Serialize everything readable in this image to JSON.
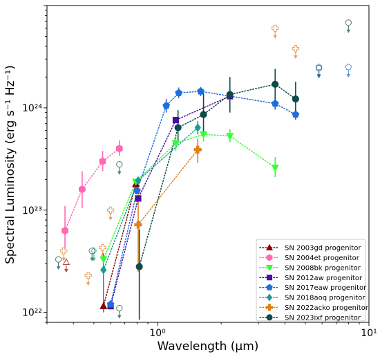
{
  "chart_data": {
    "type": "scatter",
    "title": "",
    "xlabel": "Wavelength (μm)",
    "ylabel": "Spectral Luminosity (erg s⁻¹ Hz⁻¹)",
    "xscale": "log",
    "yscale": "log",
    "xlim": [
      0.3,
      10
    ],
    "ylim": [
      8e+21,
      1e+25
    ],
    "x_ticks": [
      {
        "value": 1,
        "label": "10⁰"
      },
      {
        "value": 10,
        "label": "10¹"
      }
    ],
    "y_ticks": [
      {
        "value": 1e+22,
        "label": "10²²"
      },
      {
        "value": 1e+23,
        "label": "10²³"
      },
      {
        "value": 1e+24,
        "label": "10²⁴"
      }
    ],
    "legend_position": "lower-right",
    "series": [
      {
        "name": "SN 2003gd progenitor",
        "color": "#8b0000",
        "marker": "triangle-up",
        "points": [
          {
            "x": 0.555,
            "y": 1.15e+22,
            "err": [
              1.04e+22,
              1.28e+22
            ]
          },
          {
            "x": 0.79,
            "y": 1.8e+23
          }
        ],
        "upper_limits": [
          {
            "x": 0.37,
            "y": 3.1e+22
          }
        ]
      },
      {
        "name": "SN 2004et progenitor",
        "color": "#ff69b4",
        "marker": "hexagon",
        "points": [
          {
            "x": 0.365,
            "y": 6.3e+22,
            "err": [
              4.2e+22,
              1.1e+23
            ]
          },
          {
            "x": 0.44,
            "y": 1.6e+23,
            "err": [
              1.05e+23,
              2.4e+23
            ]
          },
          {
            "x": 0.55,
            "y": 3e+23,
            "err": [
              2.4e+23,
              3.8e+23
            ]
          },
          {
            "x": 0.66,
            "y": 4e+23,
            "err": [
              3.4e+23,
              4.8e+23
            ]
          }
        ],
        "upper_limits": []
      },
      {
        "name": "SN 2008bk progenitor",
        "color": "#33ff33",
        "marker": "triangle-down",
        "points": [
          {
            "x": 0.555,
            "y": 3.3e+22
          },
          {
            "x": 0.79,
            "y": 1.9e+23
          },
          {
            "x": 1.22,
            "y": 4.5e+23,
            "err": [
              3.8e+23,
              5.3e+23
            ]
          },
          {
            "x": 1.65,
            "y": 5.5e+23,
            "err": [
              4.7e+23,
              6.4e+23
            ]
          },
          {
            "x": 2.2,
            "y": 5.3e+23,
            "err": [
              4.6e+23,
              6.2e+23
            ]
          },
          {
            "x": 3.6,
            "y": 2.6e+23,
            "err": [
              2.1e+23,
              3.3e+23
            ]
          }
        ],
        "upper_limits": []
      },
      {
        "name": "SN 2012aw progenitor",
        "color": "#4b0f9e",
        "marker": "square",
        "points": [
          {
            "x": 0.6,
            "y": 1.15e+22
          },
          {
            "x": 0.81,
            "y": 1.3e+23
          },
          {
            "x": 1.22,
            "y": 7.6e+23
          },
          {
            "x": 2.2,
            "y": 1.3e+24
          }
        ],
        "upper_limits": []
      },
      {
        "name": "SN 2017eaw progenitor",
        "color": "#1e6fdc",
        "marker": "pentagon",
        "points": [
          {
            "x": 0.6,
            "y": 1.2e+22
          },
          {
            "x": 0.8,
            "y": 1.55e+23
          },
          {
            "x": 1.1,
            "y": 1.05e+24,
            "err": [
              9e+23,
              1.22e+24
            ]
          },
          {
            "x": 1.26,
            "y": 1.4e+24,
            "err": [
              1.24e+24,
              1.58e+24
            ]
          },
          {
            "x": 1.6,
            "y": 1.45e+24,
            "err": [
              1.3e+24,
              1.6e+24
            ]
          },
          {
            "x": 3.6,
            "y": 1.1e+24,
            "err": [
              9.6e+23,
              1.26e+24
            ]
          },
          {
            "x": 4.5,
            "y": 8.6e+23,
            "err": [
              7.6e+23,
              9.8e+23
            ]
          }
        ],
        "upper_limits": [
          {
            "x": 5.8,
            "y": 2.5e+24
          },
          {
            "x": 8.0,
            "y": 2.5e+24
          }
        ]
      },
      {
        "name": "SN 2018aoq progenitor",
        "color": "#1a9e8f",
        "marker": "diamond",
        "points": [
          {
            "x": 0.555,
            "y": 2.6e+22,
            "err": [
              1e+22,
              3.8e+22
            ]
          },
          {
            "x": 0.81,
            "y": 1.95e+23
          },
          {
            "x": 1.55,
            "y": 6.4e+23,
            "err": [
              5.5e+23,
              7.4e+23
            ]
          }
        ],
        "upper_limits": [
          {
            "x": 0.5,
            "y": 4e+22
          }
        ]
      },
      {
        "name": "SN 2022acko progenitor",
        "color": "#e0801a",
        "marker": "plus",
        "points": [
          {
            "x": 0.81,
            "y": 7.2e+22,
            "err": [
              2.5e+22,
              1.5e+23
            ]
          },
          {
            "x": 1.55,
            "y": 3.9e+23,
            "err": [
              2.9e+23,
              5e+23
            ]
          }
        ],
        "upper_limits": [
          {
            "x": 0.36,
            "y": 4e+22
          },
          {
            "x": 0.47,
            "y": 2.3e+22
          },
          {
            "x": 0.55,
            "y": 4.3e+22
          },
          {
            "x": 0.6,
            "y": 1e+23
          },
          {
            "x": 3.6,
            "y": 6e+24
          },
          {
            "x": 4.5,
            "y": 3.8e+24
          }
        ]
      },
      {
        "name": "SN 2023ixf progenitor",
        "color": "#0f4a4a",
        "marker": "circle",
        "points": [
          {
            "x": 0.82,
            "y": 2.8e+22,
            "err": [
              8.5e+21,
              6.5e+22
            ]
          },
          {
            "x": 1.25,
            "y": 6.4e+23,
            "err": [
              4.5e+23,
              9.5e+23
            ]
          },
          {
            "x": 1.65,
            "y": 8.6e+23,
            "err": [
              5.3e+23,
              1.4e+24
            ]
          },
          {
            "x": 2.2,
            "y": 1.35e+24,
            "err": [
              9e+23,
              2e+24
            ]
          },
          {
            "x": 3.6,
            "y": 1.7e+24,
            "err": [
              1.2e+24,
              2.4e+24
            ]
          },
          {
            "x": 4.5,
            "y": 1.22e+24,
            "err": [
              8e+23,
              1.8e+24
            ]
          }
        ],
        "upper_limits": [
          {
            "x": 0.34,
            "y": 3.3e+22
          },
          {
            "x": 0.49,
            "y": 4e+22
          },
          {
            "x": 0.66,
            "y": 2.8e+23
          },
          {
            "x": 0.66,
            "y": 1.1e+22
          },
          {
            "x": 5.8,
            "y": 2.45e+24
          },
          {
            "x": 8.0,
            "y": 6.8e+24
          }
        ]
      }
    ]
  }
}
